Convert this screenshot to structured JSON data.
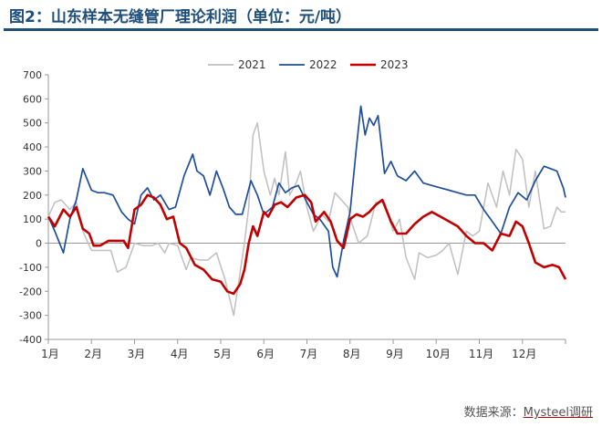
{
  "chart_data": {
    "type": "line",
    "title": "图2：山东样本无缝管厂理论利润（单位：元/吨）",
    "ylim": [
      -400,
      700
    ],
    "yticks": [
      -400,
      -300,
      -200,
      -100,
      0,
      100,
      200,
      300,
      400,
      500,
      600,
      700
    ],
    "xlim": [
      0,
      12
    ],
    "month_labels": [
      "1月",
      "2月",
      "3月",
      "4月",
      "5月",
      "6月",
      "7月",
      "8月",
      "9月",
      "10月",
      "11月",
      "12月"
    ],
    "legend_position": "top",
    "grid": false,
    "source": "数据来源：",
    "source_brand": "Mysteel调研",
    "series": [
      {
        "name": "2021",
        "color": "#bfbfbf",
        "x": [
          0,
          0.15,
          0.3,
          0.5,
          0.65,
          0.8,
          1.0,
          1.2,
          1.45,
          1.6,
          1.8,
          2.0,
          2.2,
          2.4,
          2.55,
          2.7,
          2.8,
          3.0,
          3.2,
          3.3,
          3.5,
          3.7,
          3.9,
          4.1,
          4.3,
          4.55,
          4.65,
          4.75,
          4.85,
          5.0,
          5.15,
          5.25,
          5.35,
          5.5,
          5.6,
          5.75,
          5.85,
          6.0,
          6.15,
          6.35,
          6.5,
          6.65,
          6.8,
          6.95,
          7.05,
          7.2,
          7.4,
          7.6,
          7.8,
          8.0,
          8.15,
          8.3,
          8.5,
          8.6,
          8.8,
          9.0,
          9.15,
          9.3,
          9.5,
          9.7,
          9.85,
          10.0,
          10.2,
          10.4,
          10.55,
          10.7,
          10.85,
          11.0,
          11.15,
          11.3,
          11.5,
          11.65,
          11.8,
          11.9,
          12.0
        ],
        "values": [
          110,
          170,
          180,
          140,
          170,
          50,
          -30,
          -30,
          -30,
          -120,
          -100,
          0,
          -10,
          -10,
          0,
          -40,
          0,
          -10,
          -110,
          -60,
          -70,
          -70,
          -40,
          -150,
          -300,
          0,
          150,
          450,
          500,
          300,
          200,
          270,
          200,
          380,
          200,
          250,
          300,
          150,
          50,
          120,
          90,
          210,
          180,
          150,
          80,
          0,
          30,
          170,
          170,
          50,
          100,
          -60,
          -150,
          -40,
          -60,
          -50,
          -30,
          0,
          -130,
          50,
          30,
          50,
          250,
          150,
          300,
          200,
          390,
          350,
          150,
          300,
          60,
          70,
          150,
          130,
          130
        ]
      },
      {
        "name": "2022",
        "color": "#1f4e9a",
        "x": [
          0,
          0.15,
          0.35,
          0.5,
          0.65,
          0.8,
          1.0,
          1.15,
          1.3,
          1.5,
          1.7,
          1.85,
          2.0,
          2.15,
          2.3,
          2.45,
          2.6,
          2.8,
          2.95,
          3.15,
          3.35,
          3.45,
          3.6,
          3.75,
          3.9,
          4.05,
          4.2,
          4.35,
          4.5,
          4.7,
          4.85,
          5.0,
          5.2,
          5.35,
          5.5,
          5.65,
          5.8,
          6.0,
          6.15,
          6.3,
          6.5,
          6.6,
          6.7,
          6.85,
          7.0,
          7.15,
          7.25,
          7.35,
          7.45,
          7.55,
          7.65,
          7.8,
          7.95,
          8.1,
          8.3,
          8.5,
          8.7,
          8.9,
          9.1,
          9.3,
          9.5,
          9.7,
          9.9,
          10.1,
          10.3,
          10.5,
          10.7,
          10.9,
          11.1,
          11.3,
          11.5,
          11.65,
          11.8,
          11.95,
          12.0
        ],
        "values": [
          110,
          50,
          -40,
          100,
          180,
          310,
          220,
          210,
          210,
          200,
          130,
          100,
          80,
          200,
          230,
          180,
          200,
          140,
          150,
          280,
          370,
          300,
          280,
          200,
          300,
          230,
          150,
          120,
          120,
          260,
          200,
          120,
          150,
          250,
          210,
          230,
          240,
          170,
          120,
          100,
          50,
          -100,
          -140,
          10,
          130,
          400,
          570,
          450,
          520,
          490,
          530,
          290,
          340,
          280,
          260,
          300,
          250,
          240,
          230,
          220,
          210,
          200,
          200,
          140,
          90,
          40,
          150,
          210,
          180,
          260,
          320,
          310,
          300,
          230,
          190
        ]
      },
      {
        "name": "2023",
        "color": "#c00000",
        "x": [
          0,
          0.15,
          0.35,
          0.5,
          0.65,
          0.8,
          0.95,
          1.05,
          1.2,
          1.4,
          1.6,
          1.75,
          1.85,
          2.0,
          2.15,
          2.3,
          2.45,
          2.6,
          2.75,
          2.9,
          3.05,
          3.2,
          3.4,
          3.6,
          3.8,
          4.0,
          4.15,
          4.3,
          4.45,
          4.55,
          4.65,
          4.75,
          4.85,
          5.0,
          5.1,
          5.25,
          5.4,
          5.55,
          5.75,
          5.95,
          6.1,
          6.2,
          6.4,
          6.55,
          6.7,
          6.85,
          7.0,
          7.15,
          7.3,
          7.45,
          7.6,
          7.75,
          7.95,
          8.1,
          8.3,
          8.5,
          8.7,
          8.9,
          9.1,
          9.3,
          9.5,
          9.7,
          9.9,
          10.1,
          10.3,
          10.5,
          10.7,
          10.85,
          11.0,
          11.15,
          11.3,
          11.5,
          11.7,
          11.85,
          12.0
        ],
        "values": [
          110,
          70,
          140,
          110,
          150,
          60,
          40,
          -10,
          -10,
          10,
          10,
          10,
          -20,
          140,
          160,
          200,
          190,
          160,
          100,
          110,
          0,
          -20,
          -90,
          -110,
          -150,
          -160,
          -200,
          -210,
          -170,
          -110,
          0,
          70,
          30,
          130,
          110,
          160,
          170,
          150,
          190,
          200,
          170,
          90,
          130,
          90,
          10,
          -20,
          100,
          120,
          110,
          130,
          160,
          180,
          90,
          40,
          40,
          80,
          110,
          130,
          110,
          90,
          70,
          30,
          0,
          0,
          -30,
          40,
          30,
          90,
          70,
          0,
          -80,
          -100,
          -90,
          -100,
          -150
        ]
      }
    ]
  }
}
